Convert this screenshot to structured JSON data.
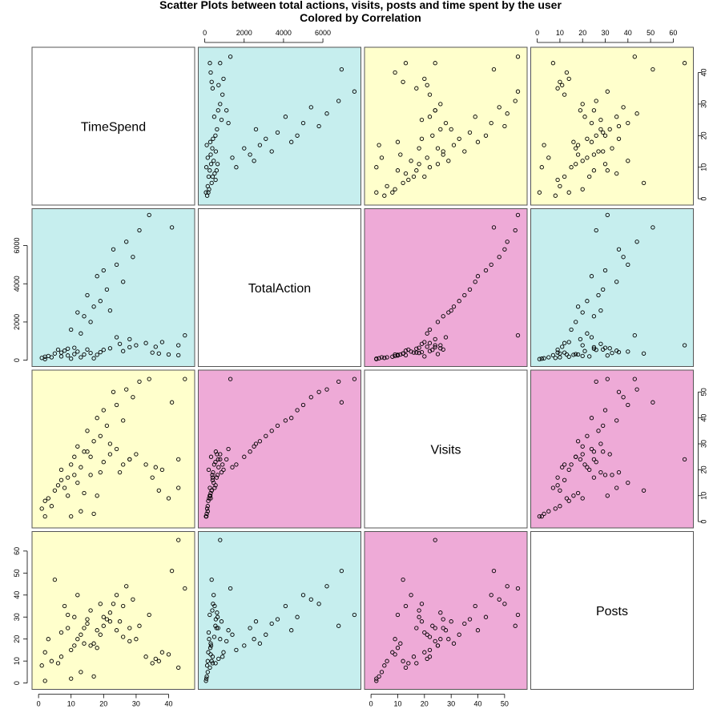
{
  "chart_data": {
    "type": "scatter",
    "title_lines": [
      "Scatter Plots between total actions, visits, posts and time spent by the user",
      "Colored by Correlation"
    ],
    "variables": [
      {
        "name": "TimeSpend",
        "range": [
          0,
          46
        ],
        "ticks": [
          0,
          10,
          20,
          30,
          40
        ]
      },
      {
        "name": "TotalAction",
        "range": [
          0,
          7600
        ],
        "ticks": [
          0,
          2000,
          4000,
          6000
        ]
      },
      {
        "name": "Visits",
        "range": [
          0,
          56
        ],
        "ticks": [
          0,
          10,
          20,
          30,
          40,
          50
        ]
      },
      {
        "name": "Posts",
        "range": [
          0,
          66
        ],
        "ticks": [
          0,
          10,
          20,
          30,
          40,
          50,
          60
        ]
      }
    ],
    "panel_colors": {
      "low_correlation": "#FFFFCC",
      "medium_correlation": "#C6EEEE",
      "high_correlation": "#EEAAD7",
      "diagonal": "#FFFFFF"
    },
    "pairs": [
      {
        "a": "TimeSpend",
        "b": "TotalAction",
        "color_group": "medium_correlation"
      },
      {
        "a": "TimeSpend",
        "b": "Visits",
        "color_group": "low_correlation"
      },
      {
        "a": "TimeSpend",
        "b": "Posts",
        "color_group": "low_correlation"
      },
      {
        "a": "TotalAction",
        "b": "Visits",
        "color_group": "high_correlation"
      },
      {
        "a": "TotalAction",
        "b": "Posts",
        "color_group": "medium_correlation"
      },
      {
        "a": "Visits",
        "b": "Posts",
        "color_group": "high_correlation"
      }
    ],
    "observations": [
      [
        41,
        6950,
        46,
        51
      ],
      [
        45,
        1300,
        55,
        43
      ],
      [
        43,
        780,
        24,
        65
      ],
      [
        34,
        7600,
        55,
        31
      ],
      [
        31,
        6800,
        54,
        26
      ],
      [
        27,
        6200,
        51,
        44
      ],
      [
        23,
        5800,
        50,
        36
      ],
      [
        29,
        5400,
        48,
        38
      ],
      [
        24,
        5000,
        45,
        40
      ],
      [
        20,
        4700,
        43,
        30
      ],
      [
        18,
        4400,
        40,
        24
      ],
      [
        26,
        4100,
        39,
        35
      ],
      [
        21,
        3700,
        37,
        29
      ],
      [
        15,
        3400,
        35,
        27
      ],
      [
        19,
        3100,
        33,
        22
      ],
      [
        17,
        2800,
        31,
        18
      ],
      [
        12,
        2500,
        29,
        20
      ],
      [
        14,
        2300,
        27,
        25
      ],
      [
        22,
        2600,
        30,
        28
      ],
      [
        16,
        2000,
        25,
        17
      ],
      [
        10,
        1600,
        22,
        15
      ],
      [
        13,
        1400,
        21,
        22
      ],
      [
        28,
        1100,
        24,
        19
      ],
      [
        38,
        950,
        20,
        14
      ],
      [
        33,
        900,
        22,
        12
      ],
      [
        25,
        850,
        19,
        28
      ],
      [
        30,
        780,
        26,
        20
      ],
      [
        36,
        700,
        21,
        11
      ],
      [
        11,
        650,
        18,
        30
      ],
      [
        9,
        600,
        17,
        25
      ],
      [
        24,
        1200,
        28,
        24
      ],
      [
        6,
        550,
        14,
        9
      ],
      [
        8,
        500,
        13,
        35
      ],
      [
        12,
        450,
        15,
        40
      ],
      [
        7,
        400,
        16,
        12
      ],
      [
        5,
        350,
        12,
        47
      ],
      [
        14,
        300,
        11,
        18
      ],
      [
        18,
        280,
        10,
        16
      ],
      [
        3,
        220,
        9,
        20
      ],
      [
        2,
        180,
        8,
        14
      ],
      [
        4,
        150,
        6,
        10
      ],
      [
        1,
        120,
        5,
        8
      ],
      [
        16,
        380,
        18,
        33
      ],
      [
        19,
        420,
        19,
        36
      ],
      [
        9,
        250,
        10,
        31
      ],
      [
        20,
        540,
        23,
        26
      ],
      [
        26,
        480,
        22,
        21
      ],
      [
        43,
        260,
        13,
        7
      ],
      [
        40,
        300,
        9,
        13
      ],
      [
        37,
        350,
        12,
        10
      ],
      [
        7,
        200,
        20,
        23
      ],
      [
        11,
        320,
        25,
        17
      ],
      [
        15,
        560,
        27,
        29
      ],
      [
        22,
        620,
        26,
        32
      ],
      [
        28,
        680,
        24,
        25
      ],
      [
        35,
        400,
        17,
        9
      ],
      [
        13,
        150,
        4,
        5
      ],
      [
        17,
        100,
        3,
        3
      ],
      [
        10,
        80,
        2,
        2
      ],
      [
        2,
        60,
        2,
        1
      ]
    ]
  }
}
